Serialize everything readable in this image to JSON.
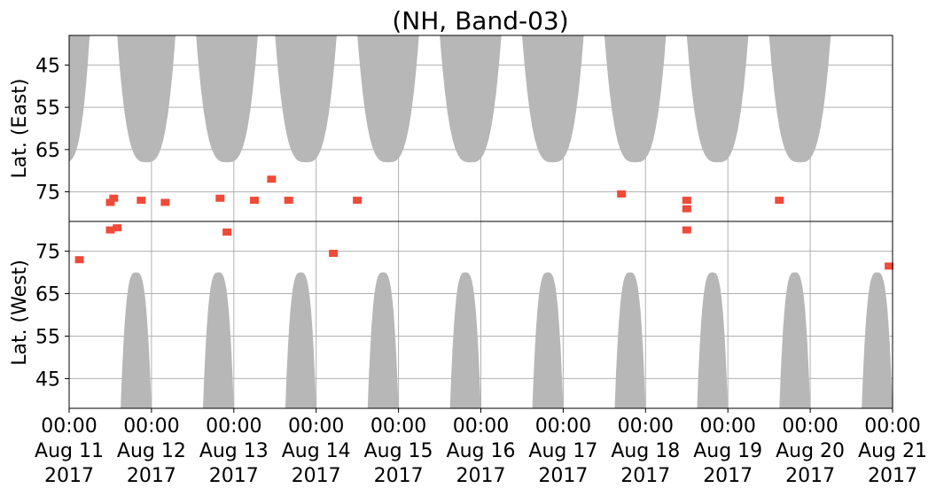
{
  "chart_data": {
    "type": "heatmap",
    "title": "(NH, Band-03)",
    "panels": [
      {
        "name": "east",
        "ylabel": "Lat. (East)",
        "yticks": [
          "45",
          "55",
          "65",
          "75"
        ],
        "yrange": [
          38,
          82
        ]
      },
      {
        "name": "west",
        "ylabel": "Lat. (West)",
        "yticks": [
          "75",
          "65",
          "55",
          "45"
        ],
        "yrange": [
          82,
          38
        ]
      }
    ],
    "xticks": [
      {
        "time": "00:00",
        "date": "Aug 11",
        "year": "2017"
      },
      {
        "time": "00:00",
        "date": "Aug 12",
        "year": "2017"
      },
      {
        "time": "00:00",
        "date": "Aug 13",
        "year": "2017"
      },
      {
        "time": "00:00",
        "date": "Aug 14",
        "year": "2017"
      },
      {
        "time": "00:00",
        "date": "Aug 15",
        "year": "2017"
      },
      {
        "time": "00:00",
        "date": "Aug 16",
        "year": "2017"
      },
      {
        "time": "00:00",
        "date": "Aug 17",
        "year": "2017"
      },
      {
        "time": "00:00",
        "date": "Aug 18",
        "year": "2017"
      },
      {
        "time": "00:00",
        "date": "Aug 19",
        "year": "2017"
      },
      {
        "time": "00:00",
        "date": "Aug 20",
        "year": "2017"
      },
      {
        "time": "00:00",
        "date": "Aug 21",
        "year": "2017"
      }
    ],
    "x_range_days": [
      "2017-08-11",
      "2017-08-21"
    ],
    "grid": true,
    "colors": {
      "daylight": "#b7b7b7",
      "event": "#f04a3a",
      "grid": "#b0b0b0"
    },
    "daylight_regions": {
      "east": [
        {
          "start": "2017-08-10 15:00",
          "end": "2017-08-11 06:00",
          "min_lat": 68
        },
        {
          "start": "2017-08-11 14:00",
          "end": "2017-08-12 07:00",
          "min_lat": 68
        },
        {
          "start": "2017-08-12 13:00",
          "end": "2017-08-13 07:00",
          "min_lat": 68
        },
        {
          "start": "2017-08-13 12:00",
          "end": "2017-08-14 06:00",
          "min_lat": 68
        },
        {
          "start": "2017-08-14 12:00",
          "end": "2017-08-15 06:00",
          "min_lat": 68
        },
        {
          "start": "2017-08-15 12:00",
          "end": "2017-08-16 06:00",
          "min_lat": 68
        },
        {
          "start": "2017-08-16 12:00",
          "end": "2017-08-17 06:00",
          "min_lat": 68
        },
        {
          "start": "2017-08-17 12:00",
          "end": "2017-08-18 06:00",
          "min_lat": 68
        },
        {
          "start": "2017-08-18 12:00",
          "end": "2017-08-19 06:00",
          "min_lat": 68
        },
        {
          "start": "2017-08-19 12:00",
          "end": "2017-08-20 06:00",
          "min_lat": 68
        }
      ],
      "west": [
        {
          "start": "2017-08-11 15:00",
          "end": "2017-08-12 00:00",
          "min_lat": 70
        },
        {
          "start": "2017-08-12 15:00",
          "end": "2017-08-13 00:00",
          "min_lat": 70
        },
        {
          "start": "2017-08-13 15:00",
          "end": "2017-08-14 00:00",
          "min_lat": 70
        },
        {
          "start": "2017-08-14 15:00",
          "end": "2017-08-15 00:00",
          "min_lat": 70
        },
        {
          "start": "2017-08-15 15:00",
          "end": "2017-08-16 00:00",
          "min_lat": 70
        },
        {
          "start": "2017-08-16 15:00",
          "end": "2017-08-17 00:00",
          "min_lat": 70
        },
        {
          "start": "2017-08-17 15:00",
          "end": "2017-08-18 00:00",
          "min_lat": 70
        },
        {
          "start": "2017-08-18 15:00",
          "end": "2017-08-19 00:00",
          "min_lat": 70
        },
        {
          "start": "2017-08-19 15:00",
          "end": "2017-08-20 00:00",
          "min_lat": 70
        },
        {
          "start": "2017-08-20 15:00",
          "end": "2017-08-21 00:00",
          "min_lat": 70
        }
      ]
    },
    "events": [
      {
        "panel": "east",
        "time": "2017-08-11 12:00",
        "lat": 77.5
      },
      {
        "panel": "east",
        "time": "2017-08-11 13:00",
        "lat": 76.5
      },
      {
        "panel": "east",
        "time": "2017-08-11 21:00",
        "lat": 77.0
      },
      {
        "panel": "east",
        "time": "2017-08-12 04:00",
        "lat": 77.5
      },
      {
        "panel": "east",
        "time": "2017-08-12 20:00",
        "lat": 76.5
      },
      {
        "panel": "east",
        "time": "2017-08-13 06:00",
        "lat": 77.0
      },
      {
        "panel": "east",
        "time": "2017-08-13 11:00",
        "lat": 72.0
      },
      {
        "panel": "east",
        "time": "2017-08-13 16:00",
        "lat": 77.0
      },
      {
        "panel": "east",
        "time": "2017-08-14 12:00",
        "lat": 77.0
      },
      {
        "panel": "east",
        "time": "2017-08-17 17:00",
        "lat": 75.5
      },
      {
        "panel": "east",
        "time": "2017-08-18 12:00",
        "lat": 77.0
      },
      {
        "panel": "east",
        "time": "2017-08-18 12:00",
        "lat": 79.0
      },
      {
        "panel": "east",
        "time": "2017-08-19 15:00",
        "lat": 77.0
      },
      {
        "panel": "west",
        "time": "2017-08-11 03:00",
        "lat": 73.0
      },
      {
        "panel": "west",
        "time": "2017-08-11 12:00",
        "lat": 80.0
      },
      {
        "panel": "west",
        "time": "2017-08-11 14:00",
        "lat": 80.5
      },
      {
        "panel": "west",
        "time": "2017-08-12 22:00",
        "lat": 79.5
      },
      {
        "panel": "west",
        "time": "2017-08-14 05:00",
        "lat": 74.5
      },
      {
        "panel": "west",
        "time": "2017-08-18 12:00",
        "lat": 80.0
      },
      {
        "panel": "west",
        "time": "2017-08-20 23:00",
        "lat": 71.5
      }
    ]
  }
}
